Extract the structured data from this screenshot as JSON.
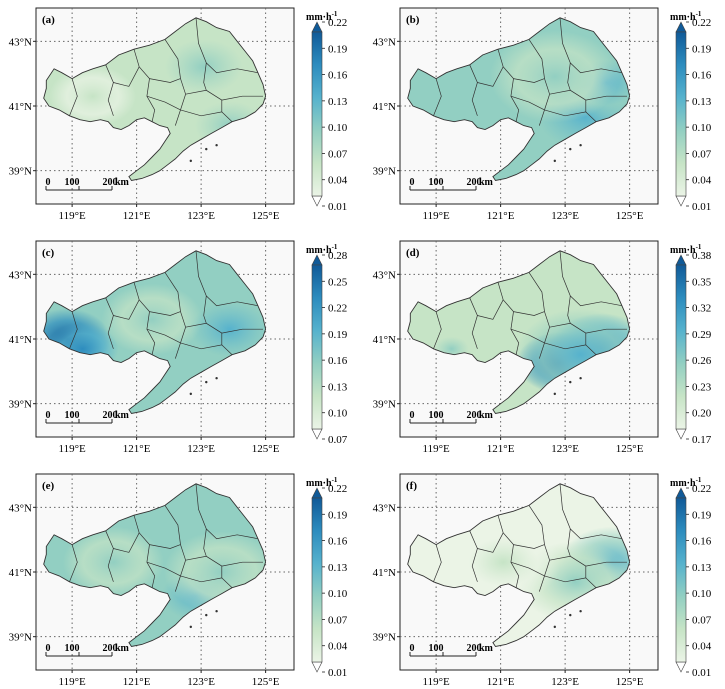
{
  "figure": {
    "unit_label": "mm·h",
    "unit_exponent": "-1",
    "lon_ticks": [
      "119°E",
      "121°E",
      "123°E",
      "125°E"
    ],
    "lat_ticks": [
      "43°N",
      "41°N",
      "39°N"
    ],
    "scalebar": {
      "labels": [
        "0",
        "100",
        "200"
      ],
      "unit": "km"
    },
    "colors": [
      "#ebf4e6",
      "#c6e4c6",
      "#92cfc2",
      "#56b2cd",
      "#2d8cbe",
      "#105a98"
    ],
    "panels": [
      {
        "label": "(a)",
        "ticks": [
          "0.22",
          "0.19",
          "0.16",
          "0.13",
          "0.10",
          "0.07",
          "0.04",
          "0.01"
        ],
        "fill": 0.45
      },
      {
        "label": "(b)",
        "ticks": [
          "0.22",
          "0.19",
          "0.16",
          "0.13",
          "0.10",
          "0.07",
          "0.04",
          "0.01"
        ],
        "fill": 0.58
      },
      {
        "label": "(c)",
        "ticks": [
          "0.28",
          "0.25",
          "0.22",
          "0.19",
          "0.16",
          "0.13",
          "0.10",
          "0.07"
        ],
        "fill": 0.5
      },
      {
        "label": "(d)",
        "ticks": [
          "0.38",
          "0.35",
          "0.32",
          "0.29",
          "0.26",
          "0.23",
          "0.20",
          "0.17"
        ],
        "fill": 0.35
      },
      {
        "label": "(e)",
        "ticks": [
          "0.22",
          "0.19",
          "0.16",
          "0.13",
          "0.10",
          "0.07",
          "0.04",
          "0.01"
        ],
        "fill": 0.5
      },
      {
        "label": "(f)",
        "ticks": [
          "0.22",
          "0.19",
          "0.16",
          "0.13",
          "0.10",
          "0.07",
          "0.04",
          "0.01"
        ],
        "fill": 0.32
      }
    ]
  }
}
